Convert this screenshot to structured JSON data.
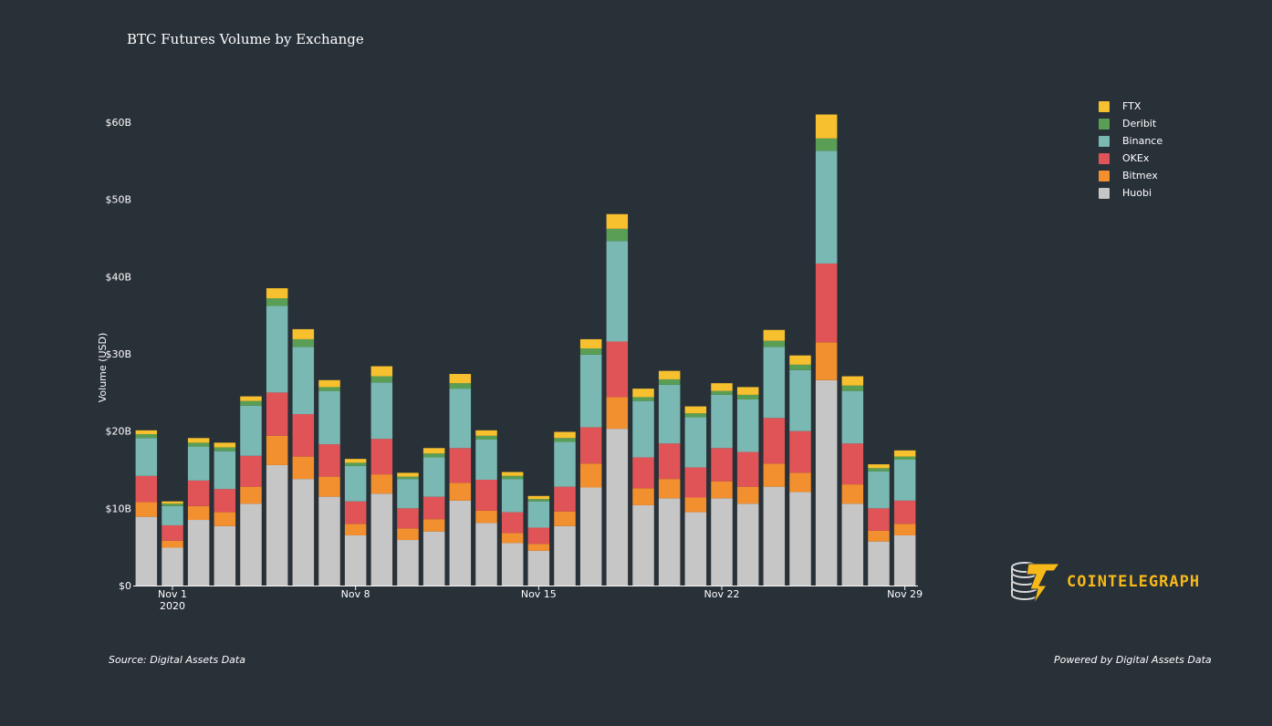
{
  "chart_data": {
    "type": "bar",
    "stacked": true,
    "title": "BTC Futures Volume by Exchange",
    "ylabel": "Volume (USD)",
    "xlabel": "",
    "ylim": [
      0,
      62
    ],
    "y_ticks": [
      {
        "value": 0,
        "label": "$0"
      },
      {
        "value": 10,
        "label": "$10B"
      },
      {
        "value": 20,
        "label": "$20B"
      },
      {
        "value": 30,
        "label": "$30B"
      },
      {
        "value": 40,
        "label": "$40B"
      },
      {
        "value": 50,
        "label": "$50B"
      },
      {
        "value": 60,
        "label": "$60B"
      }
    ],
    "x_ticks": [
      {
        "index": 1,
        "label": "Nov 1",
        "sublabel": "2020"
      },
      {
        "index": 8,
        "label": "Nov 8",
        "sublabel": ""
      },
      {
        "index": 15,
        "label": "Nov 15",
        "sublabel": ""
      },
      {
        "index": 22,
        "label": "Nov 22",
        "sublabel": ""
      },
      {
        "index": 29,
        "label": "Nov 29",
        "sublabel": ""
      }
    ],
    "categories": [
      "2020-10-31",
      "2020-11-01",
      "2020-11-02",
      "2020-11-03",
      "2020-11-04",
      "2020-11-05",
      "2020-11-06",
      "2020-11-07",
      "2020-11-08",
      "2020-11-09",
      "2020-11-10",
      "2020-11-11",
      "2020-11-12",
      "2020-11-13",
      "2020-11-14",
      "2020-11-15",
      "2020-11-16",
      "2020-11-17",
      "2020-11-18",
      "2020-11-19",
      "2020-11-20",
      "2020-11-21",
      "2020-11-22",
      "2020-11-23",
      "2020-11-24",
      "2020-11-25",
      "2020-11-26",
      "2020-11-27",
      "2020-11-28",
      "2020-11-29"
    ],
    "series": [
      {
        "name": "Huobi",
        "color": "#c6c6c6",
        "values": [
          8.9,
          4.9,
          8.5,
          7.7,
          10.6,
          15.6,
          13.8,
          11.5,
          6.5,
          11.9,
          5.9,
          7.0,
          11.0,
          8.1,
          5.5,
          4.5,
          7.7,
          12.7,
          20.3,
          10.4,
          11.3,
          9.5,
          11.3,
          10.6,
          12.8,
          12.1,
          26.6,
          10.6,
          5.7,
          6.5
        ]
      },
      {
        "name": "Bitmex",
        "color": "#f28f2f",
        "values": [
          1.9,
          0.9,
          1.8,
          1.8,
          2.2,
          3.8,
          2.9,
          2.6,
          1.5,
          2.5,
          1.5,
          1.6,
          2.3,
          1.6,
          1.3,
          0.9,
          1.9,
          3.1,
          4.1,
          2.2,
          2.5,
          1.9,
          2.2,
          2.2,
          3.0,
          2.5,
          4.9,
          2.5,
          1.4,
          1.5
        ]
      },
      {
        "name": "OKEx",
        "color": "#e05457",
        "values": [
          3.4,
          2.0,
          3.3,
          3.0,
          4.0,
          5.6,
          5.5,
          4.2,
          2.9,
          4.6,
          2.6,
          2.9,
          4.5,
          4.0,
          2.7,
          2.1,
          3.2,
          4.7,
          7.2,
          4.0,
          4.6,
          3.9,
          4.3,
          4.5,
          5.9,
          5.4,
          10.2,
          5.3,
          2.9,
          3.0
        ]
      },
      {
        "name": "Binance",
        "color": "#79b8b3",
        "values": [
          4.9,
          2.5,
          4.4,
          4.9,
          6.5,
          11.2,
          8.7,
          6.9,
          4.6,
          7.3,
          3.8,
          5.1,
          7.7,
          5.2,
          4.3,
          3.4,
          5.8,
          9.4,
          13.0,
          7.3,
          7.6,
          6.5,
          6.9,
          6.8,
          9.2,
          7.9,
          14.6,
          6.8,
          4.8,
          5.3
        ]
      },
      {
        "name": "Deribit",
        "color": "#5a9e56",
        "values": [
          0.5,
          0.3,
          0.5,
          0.5,
          0.6,
          1.0,
          1.0,
          0.5,
          0.4,
          0.8,
          0.3,
          0.5,
          0.7,
          0.5,
          0.4,
          0.3,
          0.5,
          0.8,
          1.6,
          0.5,
          0.7,
          0.5,
          0.5,
          0.6,
          0.8,
          0.7,
          1.6,
          0.7,
          0.4,
          0.4
        ]
      },
      {
        "name": "FTX",
        "color": "#f7c02e",
        "values": [
          0.5,
          0.3,
          0.6,
          0.6,
          0.6,
          1.3,
          1.3,
          0.9,
          0.5,
          1.3,
          0.5,
          0.7,
          1.2,
          0.7,
          0.5,
          0.4,
          0.8,
          1.2,
          1.9,
          1.1,
          1.1,
          0.9,
          1.0,
          1.0,
          1.4,
          1.2,
          3.1,
          1.2,
          0.5,
          0.8
        ]
      }
    ],
    "legend_position": "top-right",
    "legend_order": [
      "FTX",
      "Deribit",
      "Binance",
      "OKEx",
      "Bitmex",
      "Huobi"
    ],
    "grid": false
  },
  "footer": {
    "source": "Source: Digital Assets Data",
    "powered": "Powered by Digital Assets Data"
  },
  "logo": {
    "text": "COINTELEGRAPH",
    "icon": "coin-stack-lightning-icon",
    "color": "#f6b91a"
  },
  "colors": {
    "background": "#283038",
    "text": "#ffffff"
  }
}
